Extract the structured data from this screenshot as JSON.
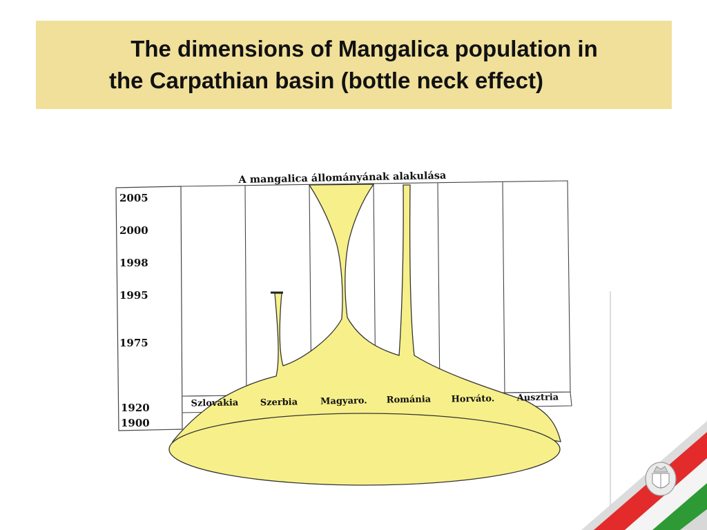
{
  "slide": {
    "title_line1": "The dimensions of Mangalica population in",
    "title_line2": "the Carpathian basin (bottle neck effect)"
  },
  "diagram": {
    "heading": "A mangalica állományának alakulása",
    "years": [
      "2005",
      "2000",
      "1998",
      "1995",
      "1975",
      "1920",
      "1900"
    ],
    "countries": [
      "Szlovákia",
      "Szerbia",
      "Magyaro.",
      "Románia",
      "Horváto.",
      "Ausztria"
    ]
  },
  "colors": {
    "banner": "#f0e09a",
    "population_fill": "#f7f08a",
    "flag_red": "#e32b2b",
    "flag_green": "#2e9a35"
  },
  "icons": [
    "hungarian-coat-of-arms-icon"
  ]
}
